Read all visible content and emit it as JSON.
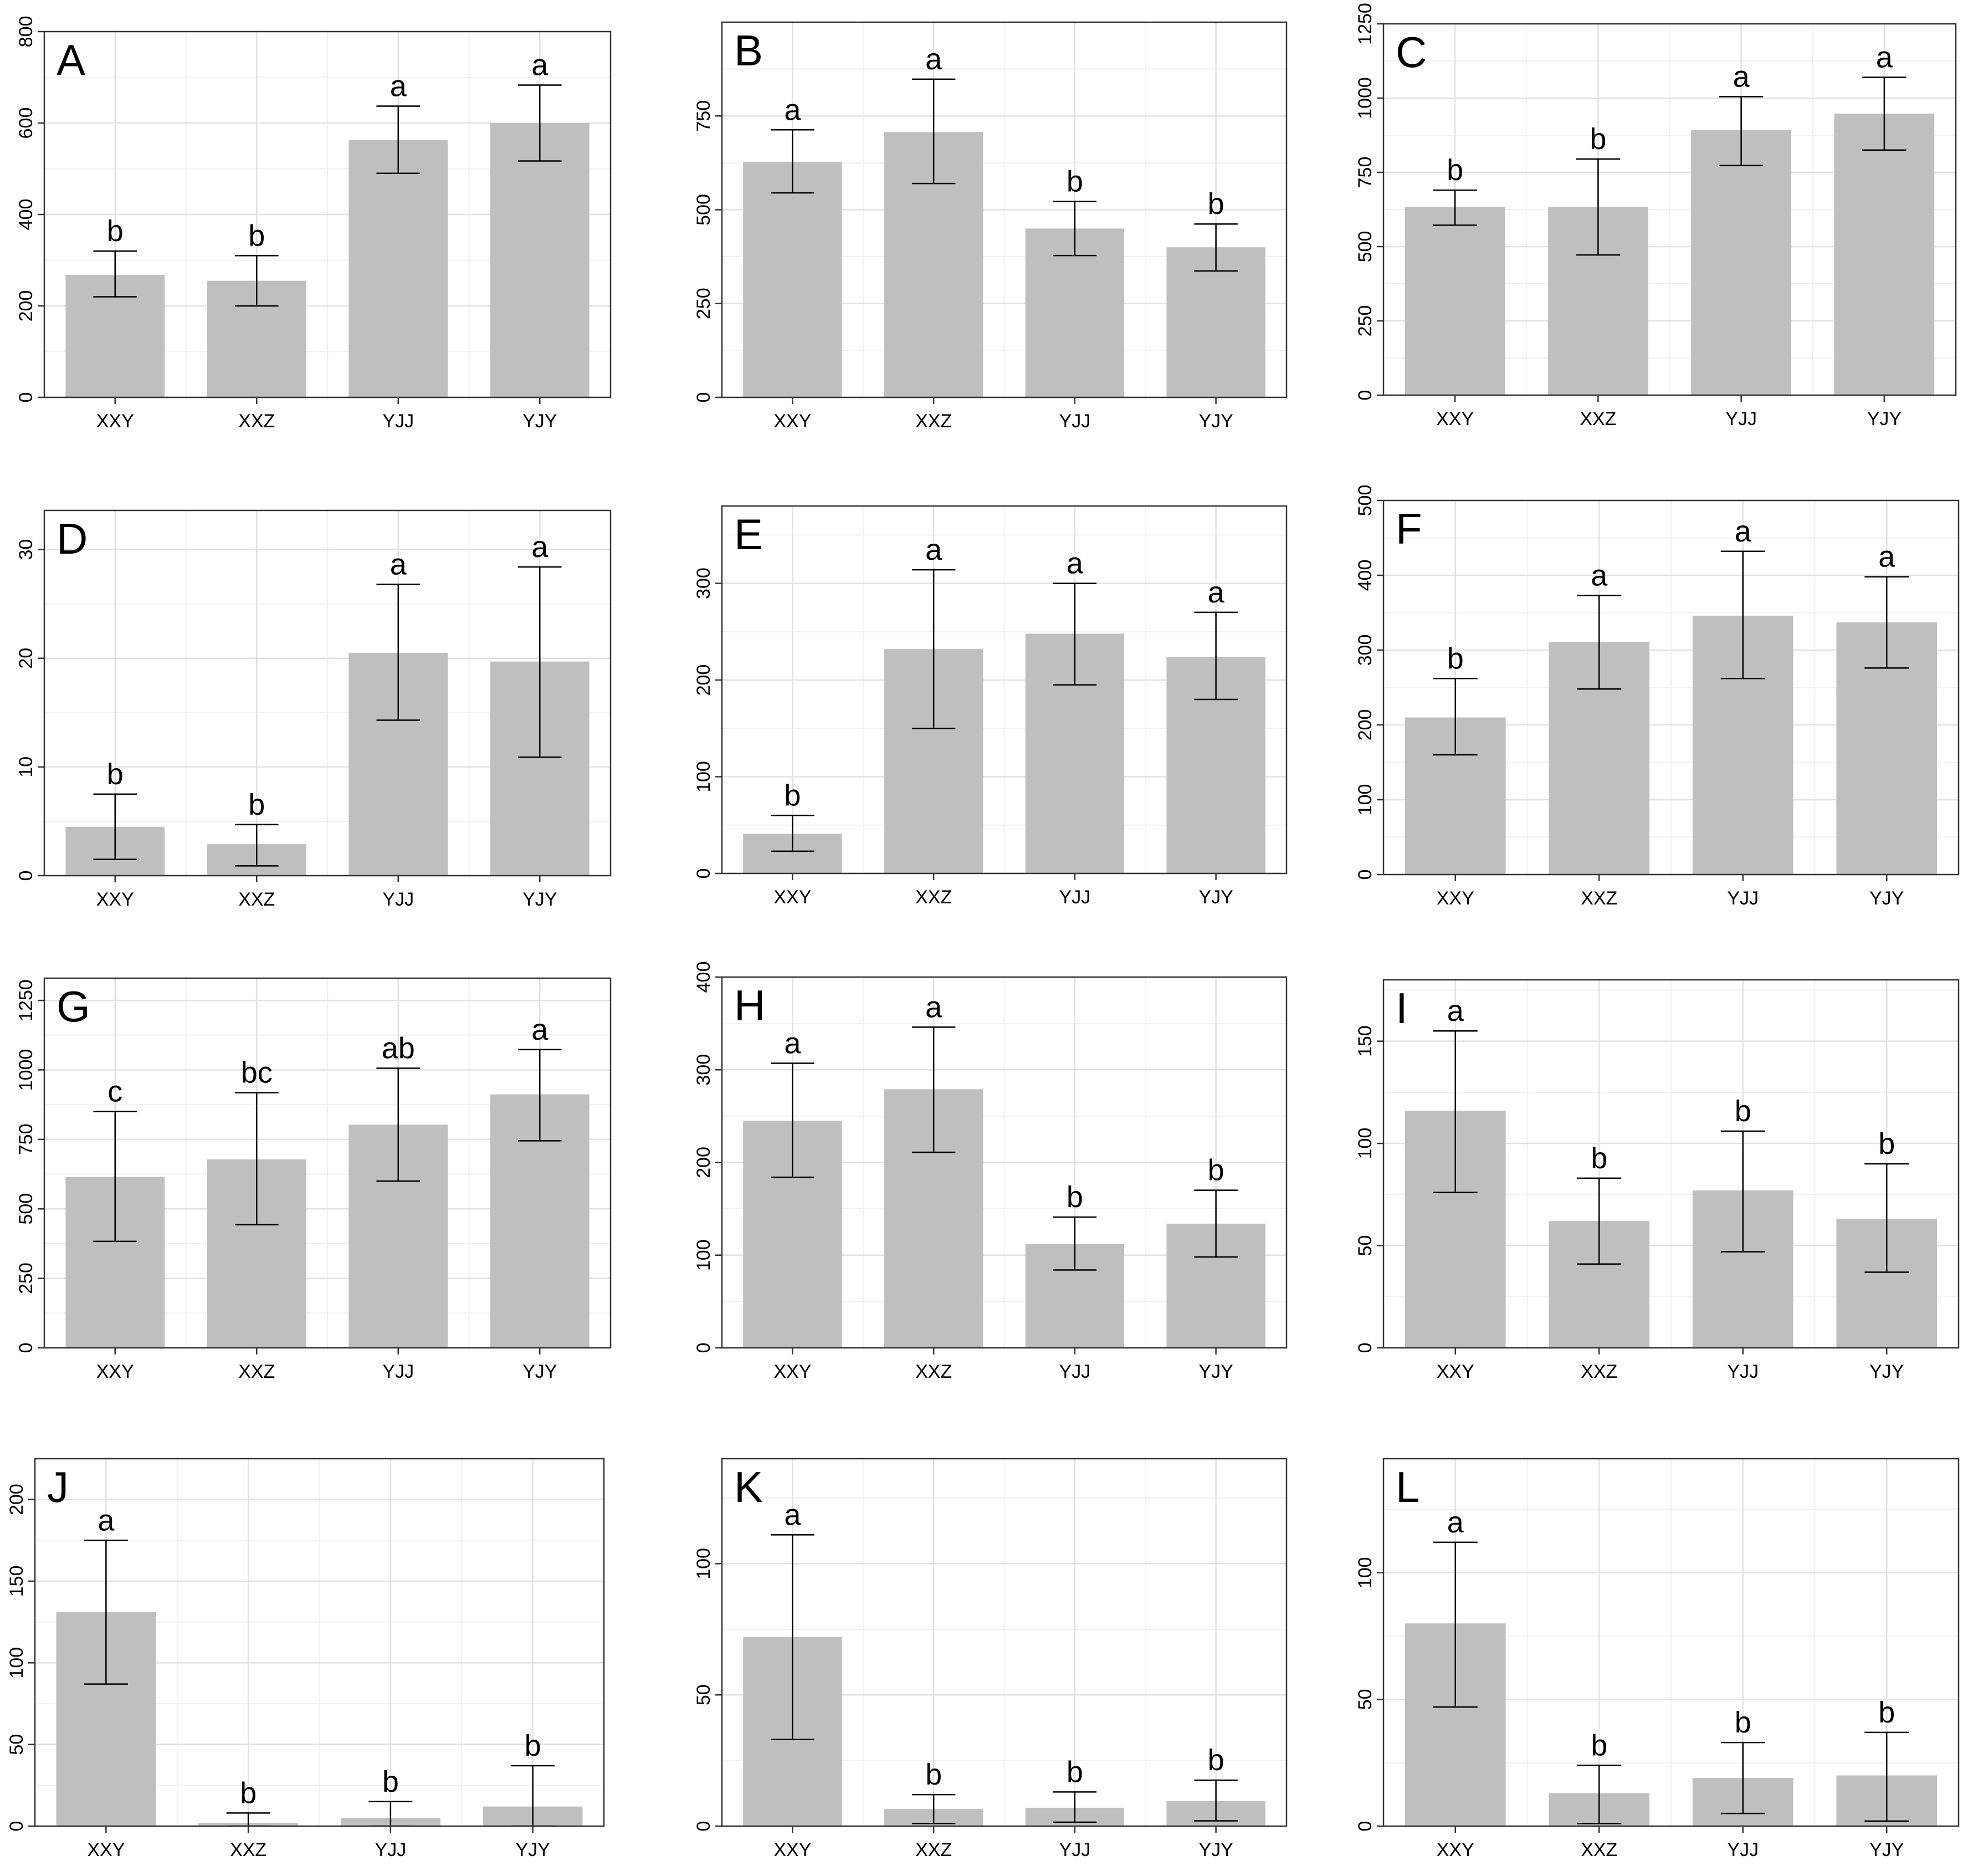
{
  "colors": {
    "bar": "#bfbfbf",
    "grid_major": "#e2e2e2",
    "grid_minor": "#f1f1f1",
    "axis": "#333333",
    "text": "#000000"
  },
  "chart_data": [
    {
      "panel": "A",
      "type": "bar",
      "categories": [
        "XXY",
        "XXZ",
        "YJJ",
        "YJY"
      ],
      "values": [
        268,
        255,
        563,
        600
      ],
      "error_low": [
        220,
        200,
        490,
        517
      ],
      "error_high": [
        320,
        310,
        637,
        683
      ],
      "letters": [
        "b",
        "b",
        "a",
        "a"
      ],
      "yticks": [
        0,
        200,
        400,
        600,
        800
      ],
      "ylim": [
        0,
        800
      ]
    },
    {
      "panel": "B",
      "type": "bar",
      "categories": [
        "XXY",
        "XXZ",
        "YJJ",
        "YJY"
      ],
      "values": [
        628,
        707,
        450,
        400
      ],
      "error_low": [
        545,
        570,
        378,
        337
      ],
      "error_high": [
        713,
        848,
        522,
        462
      ],
      "letters": [
        "a",
        "a",
        "b",
        "b"
      ],
      "yticks": [
        0,
        250,
        500,
        750
      ],
      "ylim": [
        0,
        1000
      ]
    },
    {
      "panel": "C",
      "type": "bar",
      "categories": [
        "XXY",
        "XXZ",
        "YJJ",
        "YJY"
      ],
      "values": [
        633,
        633,
        893,
        948
      ],
      "error_low": [
        572,
        472,
        773,
        825
      ],
      "error_high": [
        690,
        795,
        1005,
        1070
      ],
      "letters": [
        "b",
        "b",
        "a",
        "a"
      ],
      "yticks": [
        0,
        250,
        500,
        750,
        1000,
        1250
      ],
      "ylim": [
        0,
        1250
      ]
    },
    {
      "panel": "D",
      "type": "bar",
      "categories": [
        "XXY",
        "XXZ",
        "YJJ",
        "YJY"
      ],
      "values": [
        4.5,
        2.9,
        20.5,
        19.7
      ],
      "error_low": [
        1.5,
        0.9,
        14.3,
        10.9
      ],
      "error_high": [
        7.5,
        4.7,
        26.8,
        28.4
      ],
      "letters": [
        "b",
        "b",
        "a",
        "a"
      ],
      "yticks": [
        0,
        10,
        20,
        30
      ],
      "ylim": [
        0,
        33.6
      ]
    },
    {
      "panel": "E",
      "type": "bar",
      "categories": [
        "XXY",
        "XXZ",
        "YJJ",
        "YJY"
      ],
      "values": [
        41,
        232,
        248,
        224
      ],
      "error_low": [
        23,
        150,
        195,
        180
      ],
      "error_high": [
        60,
        314,
        300,
        270
      ],
      "letters": [
        "b",
        "a",
        "a",
        "a"
      ],
      "yticks": [
        0,
        100,
        200,
        300
      ],
      "ylim": [
        0,
        380
      ]
    },
    {
      "panel": "F",
      "type": "bar",
      "categories": [
        "XXY",
        "XXZ",
        "YJJ",
        "YJY"
      ],
      "values": [
        210,
        311,
        346,
        337
      ],
      "error_low": [
        160,
        248,
        262,
        276
      ],
      "error_high": [
        262,
        373,
        432,
        398
      ],
      "letters": [
        "b",
        "a",
        "a",
        "a"
      ],
      "yticks": [
        0,
        100,
        200,
        300,
        400,
        500
      ],
      "ylim": [
        0,
        500
      ]
    },
    {
      "panel": "G",
      "type": "bar",
      "categories": [
        "XXY",
        "XXZ",
        "YJJ",
        "YJY"
      ],
      "values": [
        615,
        678,
        803,
        912
      ],
      "error_low": [
        383,
        443,
        600,
        745
      ],
      "error_high": [
        850,
        918,
        1006,
        1073
      ],
      "letters": [
        "c",
        "bc",
        "ab",
        "a"
      ],
      "yticks": [
        0,
        250,
        500,
        750,
        1000,
        1250
      ],
      "ylim": [
        0,
        1330
      ]
    },
    {
      "panel": "H",
      "type": "bar",
      "categories": [
        "XXY",
        "XXZ",
        "YJJ",
        "YJY"
      ],
      "values": [
        245,
        279,
        112,
        134
      ],
      "error_low": [
        184,
        211,
        84,
        98
      ],
      "error_high": [
        307,
        346,
        141,
        170
      ],
      "letters": [
        "a",
        "a",
        "b",
        "b"
      ],
      "yticks": [
        0,
        100,
        200,
        300,
        400
      ],
      "ylim": [
        0,
        400
      ]
    },
    {
      "panel": "I",
      "type": "bar",
      "categories": [
        "XXY",
        "XXZ",
        "YJJ",
        "YJY"
      ],
      "values": [
        116,
        62,
        77,
        63
      ],
      "error_low": [
        76,
        41,
        47,
        37
      ],
      "error_high": [
        155,
        83,
        106,
        90
      ],
      "letters": [
        "a",
        "b",
        "b",
        "b"
      ],
      "yticks": [
        0,
        50,
        100,
        150
      ],
      "ylim": [
        0,
        180
      ]
    },
    {
      "panel": "J",
      "type": "bar",
      "categories": [
        "XXY",
        "XXZ",
        "YJJ",
        "YJY"
      ],
      "values": [
        131,
        2,
        5,
        12
      ],
      "error_low": [
        87,
        0,
        0,
        0
      ],
      "error_high": [
        175,
        8,
        15,
        37
      ],
      "letters": [
        "a",
        "b",
        "b",
        "b"
      ],
      "yticks": [
        0,
        50,
        100,
        150,
        200
      ],
      "ylim": [
        0,
        225
      ]
    },
    {
      "panel": "K",
      "type": "bar",
      "categories": [
        "XXY",
        "XXZ",
        "YJJ",
        "YJY"
      ],
      "values": [
        72,
        6.5,
        7,
        9.5
      ],
      "error_low": [
        33,
        1,
        1.5,
        2
      ],
      "error_high": [
        111,
        12,
        13,
        17.5
      ],
      "letters": [
        "a",
        "b",
        "b",
        "b"
      ],
      "yticks": [
        0,
        50,
        100
      ],
      "ylim": [
        0,
        140
      ]
    },
    {
      "panel": "L",
      "type": "bar",
      "categories": [
        "XXY",
        "XXZ",
        "YJJ",
        "YJY"
      ],
      "values": [
        80,
        13,
        19,
        20
      ],
      "error_low": [
        47,
        1,
        5,
        2
      ],
      "error_high": [
        112,
        24,
        33,
        37
      ],
      "letters": [
        "a",
        "b",
        "b",
        "b"
      ],
      "yticks": [
        0,
        50,
        100
      ],
      "ylim": [
        0,
        145
      ]
    }
  ]
}
